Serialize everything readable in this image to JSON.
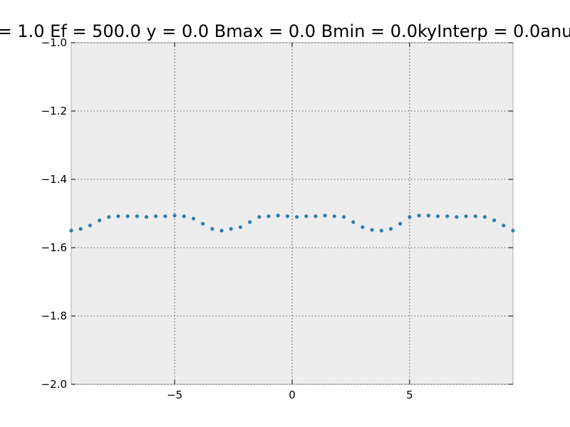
{
  "chart_data": {
    "type": "scatter",
    "title": "= 1.0 Ef = 500.0 y = 0.0 Bmax = 0.0 Bmin = 0.0kyInterp = 0.0anu",
    "xlabel": "",
    "ylabel": "",
    "xlim": [
      -9.4,
      9.4
    ],
    "ylim": [
      -2.0,
      -1.0
    ],
    "grid": true,
    "x_ticks": [
      {
        "value": -5,
        "label": "−5"
      },
      {
        "value": 0,
        "label": "0"
      },
      {
        "value": 5,
        "label": "5"
      }
    ],
    "y_ticks": [
      {
        "value": -1.0,
        "label": "−1.0"
      },
      {
        "value": -1.2,
        "label": "−1.2"
      },
      {
        "value": -1.4,
        "label": "−1.4"
      },
      {
        "value": -1.6,
        "label": "−1.6"
      },
      {
        "value": -1.8,
        "label": "−1.8"
      },
      {
        "value": -2.0,
        "label": "−2.0"
      }
    ],
    "marker_color": "#2c7fb0",
    "background_color": "#ededed",
    "series": [
      {
        "x": [
          -9.4,
          -9.0,
          -8.6,
          -8.2,
          -7.8,
          -7.4,
          -7.0,
          -6.6,
          -6.2,
          -5.8,
          -5.4,
          -5.0,
          -4.6,
          -4.2,
          -3.8,
          -3.4,
          -3.0,
          -2.6,
          -2.2,
          -1.8,
          -1.4,
          -1.0,
          -0.6,
          -0.2,
          0.2,
          0.6,
          1.0,
          1.4,
          1.8,
          2.2,
          2.6,
          3.0,
          3.4,
          3.8,
          4.2,
          4.6,
          5.0,
          5.4,
          5.8,
          6.2,
          6.6,
          7.0,
          7.4,
          7.8,
          8.2,
          8.6,
          9.0,
          9.4
        ],
        "y": [
          -1.55,
          -1.545,
          -1.535,
          -1.52,
          -1.51,
          -1.508,
          -1.508,
          -1.508,
          -1.51,
          -1.508,
          -1.508,
          -1.506,
          -1.508,
          -1.515,
          -1.53,
          -1.545,
          -1.55,
          -1.545,
          -1.54,
          -1.525,
          -1.51,
          -1.508,
          -1.506,
          -1.508,
          -1.51,
          -1.508,
          -1.508,
          -1.506,
          -1.508,
          -1.51,
          -1.525,
          -1.54,
          -1.548,
          -1.55,
          -1.545,
          -1.53,
          -1.51,
          -1.506,
          -1.506,
          -1.508,
          -1.508,
          -1.51,
          -1.508,
          -1.508,
          -1.51,
          -1.52,
          -1.535,
          -1.55
        ]
      }
    ]
  }
}
